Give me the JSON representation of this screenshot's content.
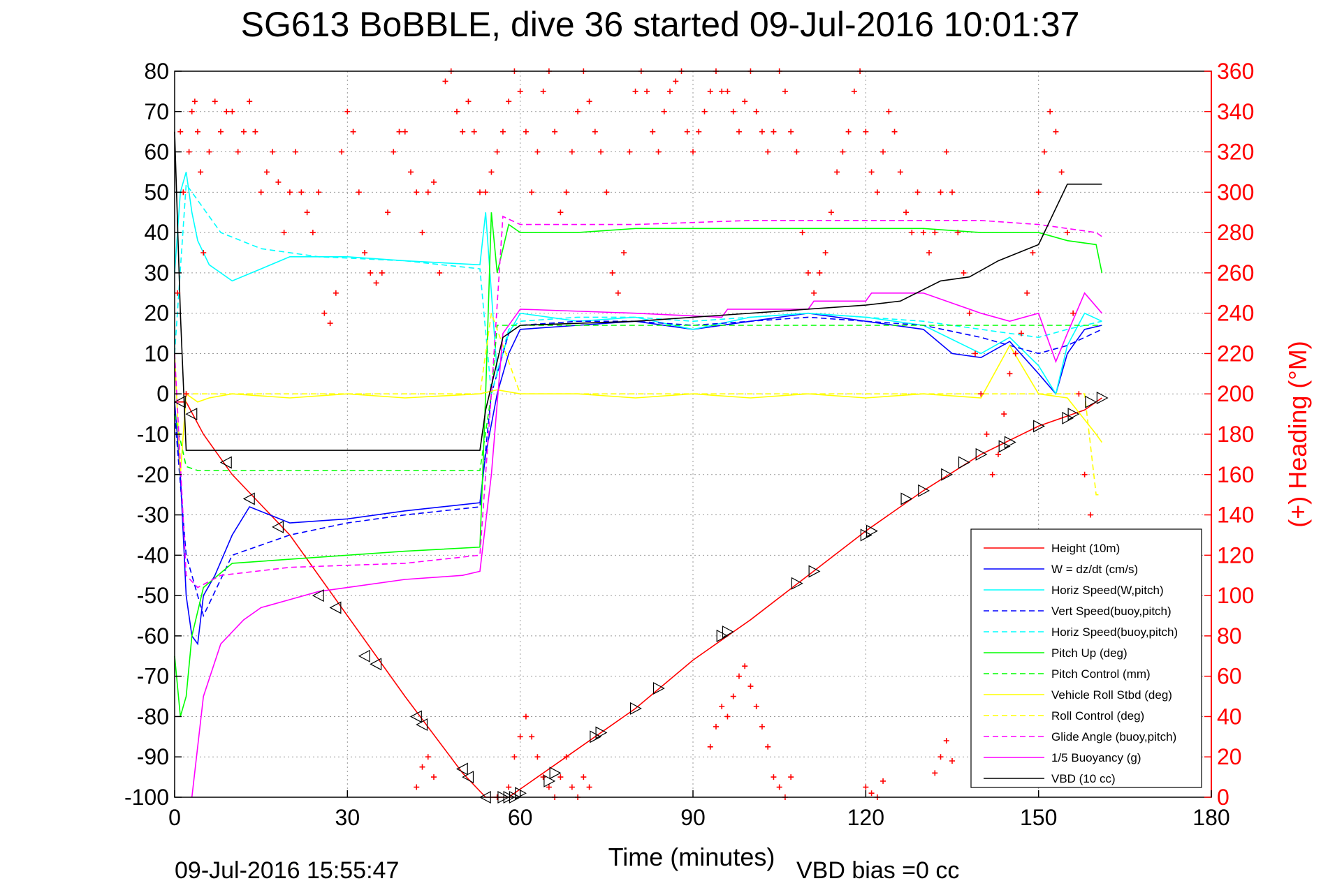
{
  "chart_data": {
    "type": "line",
    "title": "SG613 BoBBLE, dive 36 started 09-Jul-2016 10:01:37",
    "xlabel": "Time (minutes)",
    "ylabel_right": "(+) Heading (°M)",
    "footer_left": "09-Jul-2016 15:55:47",
    "footer_right": "VBD bias =0 cc",
    "xlim": [
      0,
      180
    ],
    "ylim_left": [
      -100,
      80
    ],
    "ylim_right": [
      0,
      360
    ],
    "x_ticks": [
      0,
      30,
      60,
      90,
      120,
      150,
      180
    ],
    "y_ticks_left": [
      80,
      70,
      60,
      50,
      40,
      30,
      20,
      10,
      0,
      -10,
      -20,
      -30,
      -40,
      -50,
      -60,
      -70,
      -80,
      -90,
      -100
    ],
    "y_ticks_right": [
      360,
      340,
      320,
      300,
      280,
      260,
      240,
      220,
      200,
      180,
      160,
      140,
      120,
      100,
      80,
      60,
      40,
      20,
      0
    ],
    "grid": true,
    "legend_position": "lower-right",
    "colors": {
      "red": "#ff0000",
      "blue": "#0000ff",
      "cyan": "#00ffff",
      "green": "#00ff00",
      "yellow": "#ffff00",
      "magenta": "#ff00ff",
      "black": "#000000"
    },
    "series": [
      {
        "name": "Height (10m)",
        "color": "#ff0000",
        "dash": false,
        "x": [
          0,
          2,
          5,
          10,
          20,
          30,
          40,
          50,
          54,
          58,
          60,
          70,
          80,
          90,
          100,
          110,
          120,
          130,
          140,
          150,
          158,
          161
        ],
        "y": [
          -2,
          -2,
          -10,
          -20,
          -35,
          -55,
          -75,
          -94,
          -100,
          -100,
          -98,
          -88,
          -78,
          -66,
          -56,
          -45,
          -34,
          -24,
          -15,
          -8,
          -4,
          -1
        ]
      },
      {
        "name": "W  = dz/dt (cm/s)",
        "color": "#0000ff",
        "dash": false,
        "x": [
          0,
          1,
          2,
          3,
          4,
          5,
          7,
          10,
          13,
          20,
          30,
          40,
          53,
          54,
          56,
          58,
          60,
          70,
          80,
          90,
          100,
          110,
          120,
          130,
          135,
          140,
          145,
          150,
          153,
          155,
          158,
          161
        ],
        "y": [
          -2,
          -20,
          -50,
          -60,
          -62,
          -50,
          -45,
          -35,
          -28,
          -32,
          -31,
          -29,
          -27,
          -15,
          0,
          10,
          16,
          17,
          18,
          16,
          18,
          20,
          18,
          16,
          10,
          9,
          13,
          5,
          0,
          10,
          16,
          17
        ]
      },
      {
        "name": "Horiz Speed(W,pitch)",
        "color": "#00ffff",
        "dash": false,
        "x": [
          0,
          1,
          2,
          3,
          4,
          6,
          10,
          15,
          20,
          30,
          40,
          53,
          54,
          56,
          58,
          60,
          70,
          80,
          90,
          100,
          110,
          120,
          130,
          140,
          145,
          150,
          153,
          155,
          158,
          161
        ],
        "y": [
          30,
          50,
          55,
          45,
          38,
          32,
          28,
          31,
          34,
          34,
          33,
          32,
          45,
          5,
          15,
          20,
          18,
          19,
          16,
          19,
          20,
          19,
          17,
          10,
          14,
          7,
          0,
          12,
          20,
          18
        ]
      },
      {
        "name": "Vert Speed(buoy,pitch)",
        "color": "#0000ff",
        "dash": true,
        "x": [
          0,
          2,
          5,
          10,
          20,
          30,
          40,
          53,
          55,
          58,
          60,
          70,
          80,
          90,
          100,
          110,
          120,
          130,
          140,
          150,
          155,
          161
        ],
        "y": [
          -5,
          -40,
          -55,
          -40,
          -35,
          -32,
          -30,
          -28,
          0,
          15,
          17,
          18,
          18,
          17,
          18,
          19,
          18,
          17,
          14,
          10,
          12,
          16
        ]
      },
      {
        "name": "Horiz Speed(buoy,pitch)",
        "color": "#00ffff",
        "dash": true,
        "x": [
          0,
          2,
          4,
          8,
          15,
          25,
          40,
          53,
          55,
          58,
          60,
          70,
          80,
          90,
          100,
          110,
          120,
          130,
          140,
          150,
          155,
          161
        ],
        "y": [
          10,
          52,
          48,
          40,
          36,
          34,
          33,
          31,
          0,
          16,
          18,
          19,
          19,
          18,
          19,
          20,
          19,
          18,
          16,
          14,
          16,
          18
        ]
      },
      {
        "name": "Pitch Up (deg)",
        "color": "#00ff00",
        "dash": false,
        "x": [
          0,
          1,
          2,
          3,
          5,
          10,
          20,
          30,
          40,
          53,
          54,
          55,
          56,
          58,
          60,
          70,
          80,
          90,
          100,
          110,
          120,
          130,
          140,
          150,
          155,
          160,
          161
        ],
        "y": [
          -65,
          -80,
          -75,
          -60,
          -48,
          -42,
          -41,
          -40,
          -39,
          -38,
          0,
          45,
          30,
          42,
          40,
          40,
          41,
          41,
          41,
          41,
          41,
          41,
          40,
          40,
          38,
          37,
          30
        ]
      },
      {
        "name": "Pitch Control (mm)",
        "color": "#00ff00",
        "dash": true,
        "x": [
          0,
          2,
          4,
          10,
          30,
          53,
          55,
          56,
          60,
          100,
          140,
          150,
          161
        ],
        "y": [
          -5,
          -18,
          -19,
          -19,
          -19,
          -19,
          0,
          17,
          17,
          17,
          17,
          17,
          17
        ]
      },
      {
        "name": "Vehicle Roll Stbd (deg)",
        "color": "#ffff00",
        "dash": false,
        "x": [
          0,
          1,
          2,
          4,
          6,
          10,
          20,
          30,
          40,
          53,
          56,
          60,
          70,
          80,
          90,
          100,
          110,
          120,
          130,
          140,
          145,
          150,
          155,
          160,
          161
        ],
        "y": [
          10,
          -20,
          0,
          -2,
          -1,
          0,
          -1,
          0,
          -1,
          0,
          1,
          0,
          0,
          -1,
          0,
          -1,
          0,
          -1,
          0,
          -1,
          12,
          0,
          -1,
          -10,
          -12
        ]
      },
      {
        "name": "Roll Control (deg)",
        "color": "#ffff00",
        "dash": true,
        "x": [
          0,
          10,
          20,
          30,
          40,
          53,
          55,
          60,
          70,
          80,
          90,
          100,
          110,
          120,
          130,
          140,
          150,
          155,
          158,
          160,
          161
        ],
        "y": [
          0,
          0,
          0,
          0,
          0,
          0,
          20,
          0,
          0,
          0,
          0,
          0,
          0,
          0,
          0,
          0,
          0,
          0,
          0,
          -25,
          -25
        ]
      },
      {
        "name": "Glide Angle (buoy,pitch)",
        "color": "#ff00ff",
        "dash": true,
        "x": [
          0,
          2,
          4,
          8,
          20,
          40,
          53,
          55,
          57,
          60,
          80,
          100,
          120,
          140,
          150,
          155,
          160,
          161
        ],
        "y": [
          10,
          -45,
          -48,
          -45,
          -43,
          -42,
          -40,
          0,
          44,
          42,
          42,
          43,
          43,
          43,
          42,
          41,
          40,
          39
        ]
      },
      {
        "name": "1/5 Buoyancy (g)",
        "color": "#ff00ff",
        "dash": false,
        "x": [
          3,
          5,
          8,
          12,
          15,
          20,
          25,
          30,
          40,
          50,
          53,
          55,
          57,
          60,
          80,
          95,
          96,
          110,
          111,
          120,
          121,
          130,
          140,
          145,
          150,
          153,
          155,
          158,
          161
        ],
        "y": [
          -100,
          -75,
          -62,
          -56,
          -53,
          -51,
          -49,
          -48,
          -46,
          -45,
          -44,
          -20,
          15,
          21,
          20,
          19,
          21,
          21,
          23,
          23,
          25,
          25,
          20,
          18,
          20,
          8,
          15,
          25,
          20
        ]
      },
      {
        "name": "VBD (10 cc)",
        "color": "#000000",
        "dash": false,
        "x": [
          0,
          1,
          2,
          53,
          54,
          57,
          60,
          80,
          120,
          126,
          133,
          138,
          143,
          150,
          155,
          161
        ],
        "y": [
          65,
          20,
          -14,
          -14,
          -4,
          14,
          17,
          18,
          22,
          23,
          28,
          29,
          33,
          37,
          52,
          52
        ]
      }
    ],
    "heading_series": {
      "name": "Heading",
      "axis": "right",
      "color": "#ff0000",
      "marker": "+",
      "x": [
        0.5,
        1,
        1.5,
        2,
        2.5,
        3,
        3.5,
        4,
        4.5,
        5,
        6,
        7,
        8,
        9,
        10,
        11,
        12,
        13,
        14,
        15,
        16,
        17,
        18,
        19,
        20,
        21,
        22,
        23,
        24,
        25,
        26,
        27,
        28,
        29,
        30,
        31,
        32,
        33,
        34,
        35,
        36,
        37,
        38,
        39,
        40,
        41,
        42,
        43,
        44,
        45,
        46,
        47,
        48,
        49,
        50,
        51,
        52,
        53,
        54,
        55,
        56,
        57,
        58,
        59,
        60,
        61,
        62,
        63,
        64,
        65,
        66,
        67,
        68,
        69,
        70,
        71,
        72,
        73,
        74,
        75,
        76,
        77,
        78,
        79,
        80,
        81,
        82,
        83,
        84,
        85,
        86,
        87,
        88,
        89,
        90,
        91,
        92,
        93,
        94,
        95,
        96,
        97,
        98,
        99,
        100,
        101,
        102,
        103,
        104,
        105,
        106,
        107,
        108,
        109,
        110,
        111,
        112,
        113,
        114,
        115,
        116,
        117,
        118,
        119,
        120,
        121,
        122,
        123,
        124,
        125,
        126,
        127,
        128,
        129,
        130,
        131,
        132,
        133,
        134,
        135,
        136,
        137,
        138,
        139,
        140,
        141,
        142,
        143,
        144,
        145,
        146,
        147,
        148,
        149,
        150,
        151,
        152,
        153,
        154,
        155,
        156,
        157,
        158,
        159,
        160
      ],
      "y": [
        250,
        330,
        300,
        200,
        320,
        340,
        345,
        330,
        310,
        270,
        320,
        345,
        330,
        340,
        340,
        320,
        330,
        345,
        330,
        300,
        310,
        320,
        305,
        280,
        300,
        320,
        300,
        290,
        280,
        300,
        240,
        235,
        250,
        320,
        340,
        330,
        300,
        270,
        260,
        255,
        260,
        290,
        320,
        330,
        330,
        310,
        300,
        280,
        300,
        305,
        260,
        355,
        360,
        340,
        330,
        345,
        330,
        300,
        300,
        310,
        320,
        330,
        345,
        360,
        350,
        330,
        300,
        320,
        350,
        360,
        330,
        290,
        300,
        320,
        340,
        360,
        345,
        330,
        320,
        300,
        260,
        250,
        270,
        320,
        350,
        360,
        350,
        330,
        320,
        340,
        350,
        355,
        360,
        330,
        320,
        330,
        340,
        350,
        360,
        350,
        350,
        340,
        330,
        345,
        360,
        340,
        330,
        320,
        330,
        360,
        350,
        330,
        320,
        280,
        260,
        250,
        260,
        270,
        290,
        310,
        320,
        330,
        350,
        360,
        330,
        310,
        300,
        320,
        340,
        330,
        310,
        290,
        280,
        300,
        280,
        270,
        280,
        300,
        320,
        300,
        280,
        260,
        240,
        220,
        200,
        180,
        160,
        170,
        190,
        210,
        220,
        230,
        250,
        270,
        300,
        320,
        340,
        330,
        310,
        280,
        240,
        200,
        160,
        140,
        130
      ],
      "x_low": [
        42,
        43,
        44,
        45,
        56,
        58,
        59,
        60,
        61,
        62,
        63,
        64,
        65,
        66,
        67,
        68,
        69,
        70,
        71,
        72,
        93,
        94,
        95,
        96,
        97,
        98,
        99,
        100,
        101,
        102,
        103,
        104,
        105,
        106,
        107,
        120,
        121,
        122,
        123,
        132,
        133,
        134,
        135
      ],
      "y_low": [
        5,
        15,
        20,
        10,
        0,
        5,
        20,
        30,
        40,
        30,
        20,
        10,
        5,
        0,
        10,
        20,
        5,
        0,
        10,
        5,
        25,
        35,
        45,
        40,
        50,
        60,
        65,
        55,
        45,
        35,
        25,
        10,
        5,
        0,
        10,
        5,
        2,
        0,
        8,
        12,
        20,
        28,
        18
      ]
    },
    "markers": {
      "name": "Height markers",
      "symbol": "triangle",
      "x": [
        1,
        3,
        9,
        13,
        18,
        25,
        28,
        33,
        35,
        42,
        43,
        50,
        51,
        54,
        57,
        58,
        59,
        60,
        65,
        66,
        73,
        74,
        80,
        84,
        95,
        96,
        108,
        111,
        120,
        121,
        127,
        130,
        134,
        137,
        140,
        144,
        145,
        150,
        155,
        156,
        159,
        161
      ],
      "y": [
        -2,
        -5,
        -17,
        -26,
        -33,
        -50,
        -53,
        -65,
        -67,
        -80,
        -82,
        -93,
        -95,
        -100,
        -100,
        -100,
        -100,
        -99,
        -96,
        -94,
        -85,
        -84,
        -78,
        -73,
        -60,
        -59,
        -47,
        -44,
        -35,
        -34,
        -26,
        -24,
        -20,
        -17,
        -15,
        -13,
        -12,
        -8,
        -6,
        -5,
        -2,
        -1
      ]
    }
  }
}
